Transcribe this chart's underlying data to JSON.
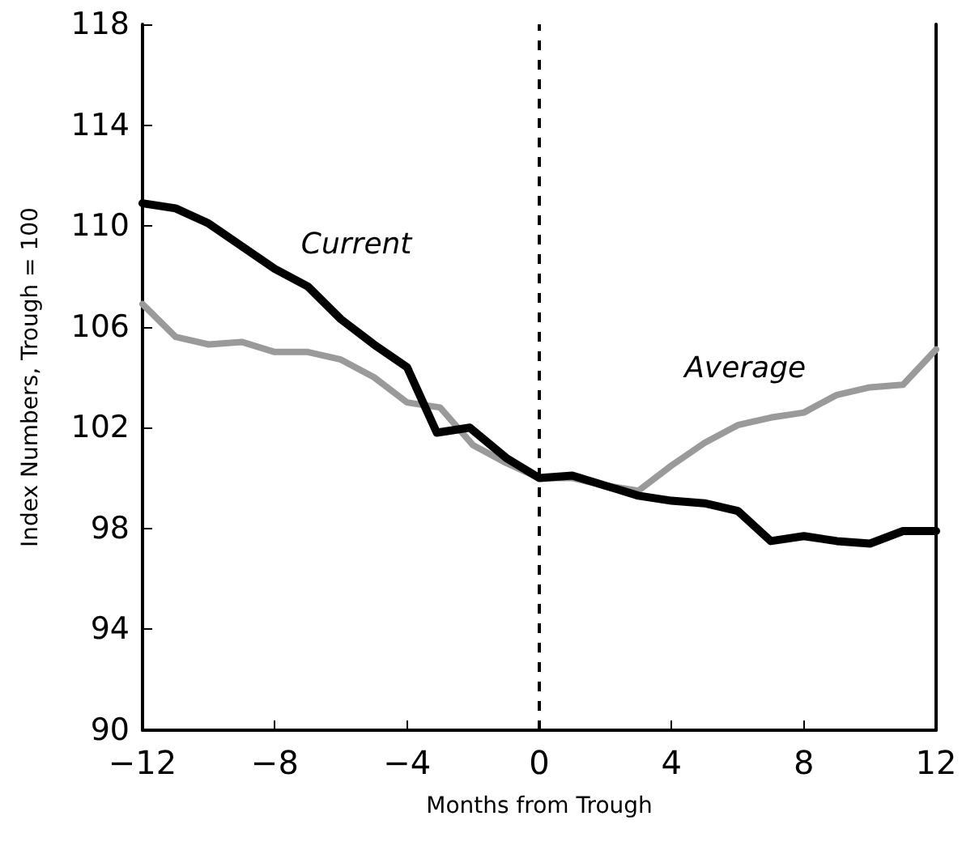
{
  "chart_data": {
    "type": "line",
    "xlabel": "Months from Trough",
    "ylabel": "Index Numbers, Trough = 100",
    "xlim": [
      -12,
      12
    ],
    "xticks": [
      {
        "value": -12,
        "label": "−12"
      },
      {
        "value": -8,
        "label": "−8"
      },
      {
        "value": -4,
        "label": "−4"
      },
      0,
      4,
      8,
      12
    ],
    "ylim": [
      90,
      118
    ],
    "yticks": [
      90,
      94,
      98,
      102,
      106,
      110,
      114,
      118
    ],
    "grid": false,
    "legend": false,
    "marker": "none",
    "line_style": "solid",
    "ref_lines": [
      {
        "axis": "x",
        "value": 0,
        "line_style": "dashed",
        "color": "#000000"
      }
    ],
    "series": [
      {
        "name": "Current",
        "color": "#000000",
        "x": [
          -12,
          -11,
          -10,
          -9,
          -8,
          -7,
          -6,
          -5,
          -4,
          -3.1,
          -2.1,
          -1,
          0,
          1,
          2,
          3,
          4,
          5,
          6,
          7,
          8,
          9,
          10,
          11,
          12
        ],
        "values": [
          110.9,
          110.7,
          110.1,
          109.2,
          108.3,
          107.6,
          106.3,
          105.3,
          104.4,
          101.8,
          102,
          100.8,
          100,
          100.1,
          99.7,
          99.3,
          99.1,
          99,
          98.7,
          97.5,
          97.7,
          97.5,
          97.4,
          97.9,
          97.9
        ]
      },
      {
        "name": "Average",
        "color": "#9a9a9a",
        "x": [
          -12,
          -11,
          -10,
          -9,
          -8,
          -7,
          -6,
          -5,
          -4,
          -3,
          -2,
          -1,
          0,
          1,
          2,
          3,
          4,
          5,
          6,
          7,
          8,
          9,
          10,
          11,
          12
        ],
        "values": [
          106.9,
          105.6,
          105.3,
          105.4,
          105,
          105,
          104.7,
          104,
          103,
          102.8,
          101.3,
          100.6,
          100,
          100,
          99.7,
          99.5,
          100.5,
          101.4,
          102.1,
          102.4,
          102.6,
          103.3,
          103.6,
          103.7,
          105.1
        ]
      }
    ]
  }
}
